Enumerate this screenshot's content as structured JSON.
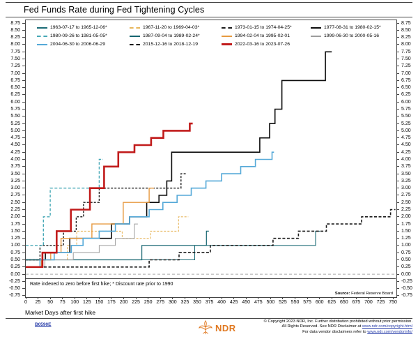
{
  "title": "Fed Funds Rate during Fed Tightening Cycles",
  "footnote": "Rate indexed to zero before first hike; * Discount rate prior to 1990",
  "source_label": "Source:",
  "source_value": "Federal Reserve Board",
  "footer": {
    "code": "B0590E",
    "logo_text": "NDR",
    "logo_color": "#e07820",
    "copyright_line1": "© Copyright 2023 NDR, Inc. Further distribution prohibited without prior permission.",
    "copyright_line2_pre": "All Rights Reserved. See NDR Disclaimer at ",
    "copyright_line2_link": "www.ndr.com/copyright.html",
    "copyright_line3_pre": "For data vendor disclaimers refer to ",
    "copyright_line3_link": "www.ndr.com/vendorinfo/"
  },
  "chart_data": {
    "type": "line",
    "step": true,
    "title": "Fed Funds Rate during Fed Tightening Cycles",
    "xlabel": "Market Days after first hike",
    "ylabel": "",
    "grid": false,
    "legend_position": "top-left inside plot, 3 rows",
    "x_ticks": {
      "min": 0,
      "max": 750,
      "step": 25
    },
    "y_ticks": {
      "min": -0.75,
      "max": 8.75,
      "step": 0.25
    },
    "x_range": [
      0,
      757
    ],
    "y_range": [
      -0.8,
      8.85
    ],
    "zero_reference_line": {
      "y": 0,
      "color": "#a8a8a8",
      "dash": [
        4,
        3
      ]
    },
    "units": "percentage points above pre-hike rate",
    "series": [
      {
        "label": "1963-07-17 to 1965-12-06*",
        "color": "#1b6b76",
        "dash": null,
        "width": 1.1,
        "points": [
          [
            0,
            0.5
          ],
          [
            345,
            1.0
          ],
          [
            592,
            1.5
          ]
        ],
        "end_day": 601
      },
      {
        "label": "1967-11-20 to 1969-04-03*",
        "color": "#e7b65c",
        "dash": [
          3,
          2
        ],
        "width": 1.1,
        "points": [
          [
            0,
            0.5
          ],
          [
            85,
            1.0
          ],
          [
            104,
            1.5
          ],
          [
            197,
            1.25
          ],
          [
            255,
            1.5
          ],
          [
            312,
            2.0
          ]
        ],
        "end_day": 332
      },
      {
        "label": "1973-01-15 to 1974-04-25*",
        "color": "#1a1a1a",
        "dash": [
          3,
          2
        ],
        "width": 1.4,
        "points": [
          [
            0,
            0.5
          ],
          [
            29,
            1.0
          ],
          [
            77,
            1.5
          ],
          [
            103,
            2.0
          ],
          [
            118,
            2.5
          ],
          [
            150,
            3.0
          ],
          [
            317,
            3.5
          ]
        ],
        "end_day": 327
      },
      {
        "label": "1977-08-31 to 1980-02-15*",
        "color": "#0d0d0d",
        "dash": null,
        "width": 1.6,
        "points": [
          [
            0,
            0.5
          ],
          [
            40,
            0.75
          ],
          [
            90,
            1.25
          ],
          [
            175,
            1.75
          ],
          [
            212,
            2.0
          ],
          [
            247,
            2.5
          ],
          [
            272,
            2.75
          ],
          [
            288,
            3.25
          ],
          [
            298,
            4.25
          ],
          [
            478,
            4.75
          ],
          [
            498,
            5.25
          ],
          [
            509,
            5.75
          ],
          [
            523,
            6.75
          ],
          [
            612,
            7.75
          ]
        ],
        "end_day": 625
      },
      {
        "label": "1980-09-26 to 1981-05-05*",
        "color": "#46a8b6",
        "dash": [
          4,
          2.5
        ],
        "width": 1.4,
        "points": [
          [
            0,
            1.0
          ],
          [
            36,
            2.0
          ],
          [
            50,
            3.0
          ],
          [
            150,
            4.0
          ]
        ],
        "end_day": 158
      },
      {
        "label": "1987-09-04 to 1989-02-24*",
        "color": "#156570",
        "dash": null,
        "width": 1.2,
        "points": [
          [
            0,
            0.5
          ],
          [
            237,
            1.0
          ],
          [
            369,
            1.5
          ]
        ],
        "end_day": 374
      },
      {
        "label": "1994-02-04 to 1995-02-01",
        "color": "#e79a40",
        "dash": null,
        "width": 1.4,
        "points": [
          [
            0,
            0.25
          ],
          [
            32,
            0.5
          ],
          [
            51,
            0.75
          ],
          [
            72,
            1.25
          ],
          [
            135,
            1.75
          ],
          [
            199,
            2.5
          ],
          [
            252,
            3.0
          ]
        ],
        "end_day": 262
      },
      {
        "label": "1999-06-30 to 2000-05-16",
        "color": "#9c9c9c",
        "dash": null,
        "width": 1.0,
        "points": [
          [
            0,
            0.25
          ],
          [
            39,
            0.5
          ],
          [
            97,
            0.75
          ],
          [
            150,
            1.0
          ],
          [
            183,
            1.25
          ],
          [
            222,
            1.75
          ]
        ],
        "end_day": 229
      },
      {
        "label": "2004-06-30 to 2006-06-29",
        "color": "#55a9d8",
        "dash": null,
        "width": 1.6,
        "points": [
          [
            0,
            0.25
          ],
          [
            29,
            0.5
          ],
          [
            58,
            0.75
          ],
          [
            93,
            1.0
          ],
          [
            117,
            1.25
          ],
          [
            150,
            1.5
          ],
          [
            183,
            1.75
          ],
          [
            212,
            2.0
          ],
          [
            252,
            2.25
          ],
          [
            280,
            2.5
          ],
          [
            309,
            2.75
          ],
          [
            338,
            3.0
          ],
          [
            368,
            3.25
          ],
          [
            400,
            3.5
          ],
          [
            439,
            3.75
          ],
          [
            469,
            4.0
          ],
          [
            503,
            4.25
          ]
        ],
        "end_day": 507
      },
      {
        "label": "2015-12-16 to 2018-12-19",
        "color": "#1a1a1a",
        "dash": [
          4,
          2.5
        ],
        "width": 1.6,
        "points": [
          [
            0,
            0.25
          ],
          [
            252,
            0.5
          ],
          [
            313,
            0.75
          ],
          [
            377,
            1.0
          ],
          [
            505,
            1.25
          ],
          [
            557,
            1.5
          ],
          [
            614,
            1.75
          ],
          [
            686,
            2.0
          ],
          [
            745,
            2.25
          ]
        ],
        "end_day": 755
      },
      {
        "label": "2022-03-16 to 2023-07-26",
        "color": "#c11b1b",
        "dash": null,
        "width": 2.6,
        "points": [
          [
            0,
            0.25
          ],
          [
            34,
            0.75
          ],
          [
            63,
            1.5
          ],
          [
            92,
            2.25
          ],
          [
            131,
            3.0
          ],
          [
            160,
            3.75
          ],
          [
            189,
            4.25
          ],
          [
            222,
            4.5
          ],
          [
            256,
            4.75
          ],
          [
            281,
            5.0
          ],
          [
            335,
            5.25
          ]
        ],
        "end_day": 341
      }
    ]
  }
}
